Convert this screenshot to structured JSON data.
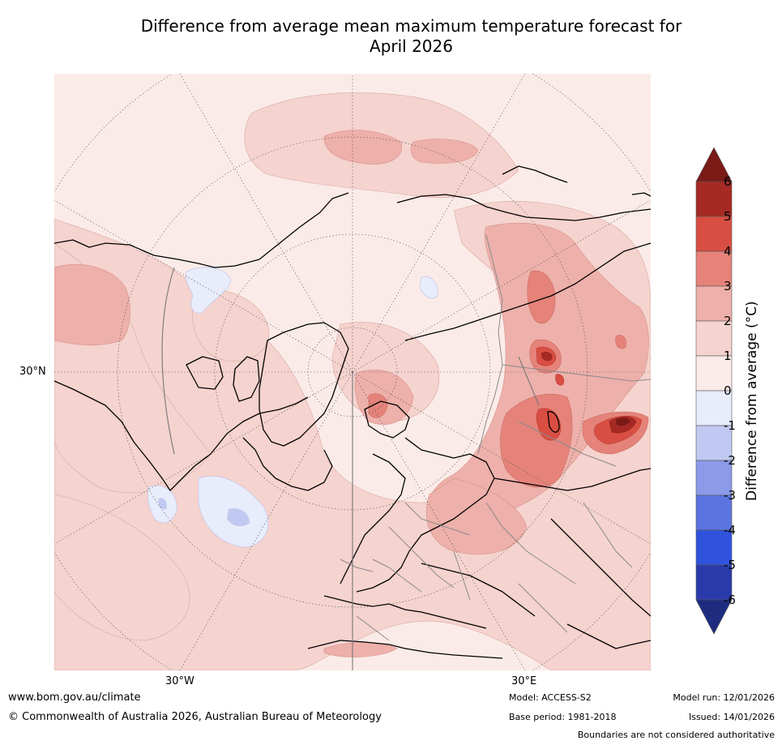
{
  "title": {
    "line1": "Difference from average mean maximum temperature forecast for",
    "line2": "April 2026"
  },
  "map": {
    "projection": "north-polar-stereographic",
    "labels": {
      "lat": "30°N",
      "lon_west": "30°W",
      "lon_east": "30°E"
    },
    "features": [
      "anomaly-shading",
      "coastlines",
      "country-borders",
      "graticule"
    ]
  },
  "colorbar": {
    "title": "Difference from average (°C)",
    "title_main": "Difference from average (",
    "title_unit": "°C)",
    "ticks": [
      "6",
      "5",
      "4",
      "3",
      "2",
      "1",
      "0",
      "-1",
      "-2",
      "-3",
      "-4",
      "-5",
      "-6"
    ],
    "colors": {
      "above_6": "#7a1b17",
      "5_to_6": "#a62a24",
      "4_to_5": "#d94e42",
      "3_to_4": "#e5837a",
      "2_to_3": "#eeb0aa",
      "1_to_2": "#f5d3ce",
      "0_to_1": "#fbebe8",
      "-1_to_0": "#e8ecfb",
      "-2_to_-1": "#c1c9f2",
      "-3_to_-2": "#8b9bea",
      "-4_to_-3": "#5b74e0",
      "-5_to_-4": "#2f53dc",
      "-6_to_-5": "#2a3aaa",
      "below_-6": "#1e2c7f"
    }
  },
  "footer": {
    "url": "www.bom.gov.au/climate",
    "copyright": "© Commonwealth of Australia 2026, Australian Bureau of Meteorology",
    "model": "Model: ACCESS-S2",
    "base_period": "Base period: 1981-2018",
    "model_run": "Model run: 12/01/2026",
    "issued": "Issued: 14/01/2026",
    "disclaimer": "Boundaries are not considered authoritative"
  }
}
